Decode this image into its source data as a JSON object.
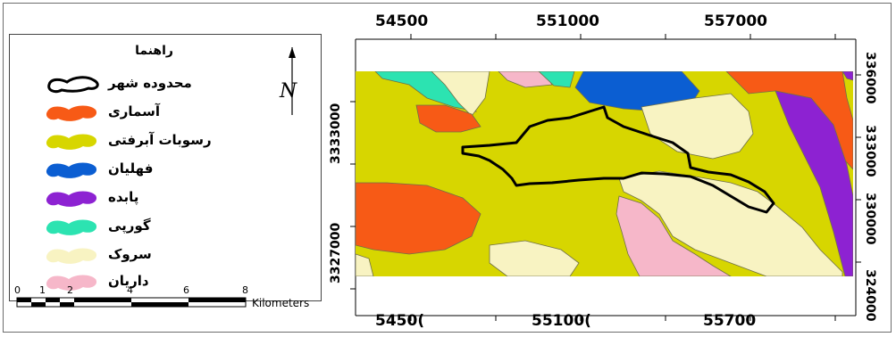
{
  "legend": {
    "title": "راهنما",
    "items": [
      {
        "label": "محدوده شهر",
        "color": "#ffffff",
        "stroke": "#000000"
      },
      {
        "label": "آسماری",
        "color": "#f75a16",
        "stroke": "none"
      },
      {
        "label": "رسوبات آبرفتی",
        "color": "#d7d600",
        "stroke": "none"
      },
      {
        "label": "فهلیان",
        "color": "#0b5ed2",
        "stroke": "none"
      },
      {
        "label": "پابده",
        "color": "#8d22d2",
        "stroke": "none"
      },
      {
        "label": "گورپی",
        "color": "#2ce3b1",
        "stroke": "none"
      },
      {
        "label": "سروک",
        "color": "#f8f3c2",
        "stroke": "none"
      },
      {
        "label": "داریان",
        "color": "#f6b7c9",
        "stroke": "none"
      }
    ]
  },
  "north_label": "N",
  "scale": {
    "ticks": [
      "0",
      "1",
      "2",
      "4",
      "6",
      "8"
    ],
    "unit": "Kilometers"
  },
  "axes": {
    "top": [
      "54500",
      "551000",
      "557000"
    ],
    "bottom": [
      "5450(",
      "55100(",
      "55700"
    ],
    "left": [
      "3333000",
      "3327000"
    ],
    "right": [
      "336000",
      "333000",
      "330000",
      "324000"
    ]
  },
  "colors": {
    "alluvium": "#d7d600",
    "asmari": "#f75a16",
    "fahliyan": "#0b5ed2",
    "pabdeh": "#8d22d2",
    "gurpi": "#2ce3b1",
    "sarvak": "#f8f3c2",
    "dariyan": "#f6b7c9"
  }
}
